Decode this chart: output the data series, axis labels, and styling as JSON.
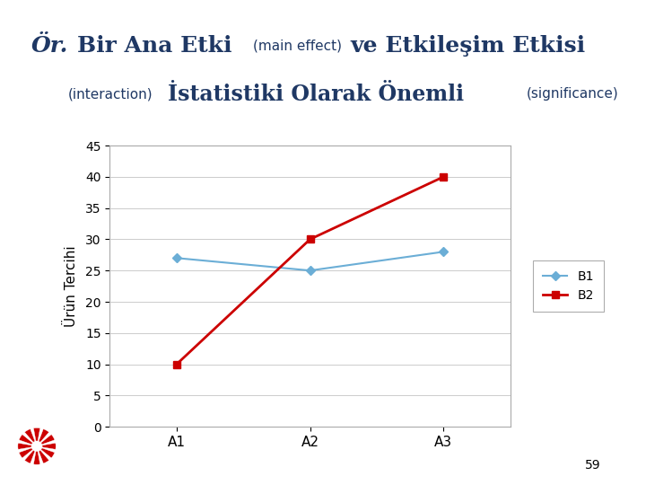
{
  "x_labels": [
    "A1",
    "A2",
    "A3"
  ],
  "x_values": [
    1,
    2,
    3
  ],
  "B1_values": [
    27,
    25,
    28
  ],
  "B2_values": [
    10,
    30,
    40
  ],
  "B1_color": "#6BAED6",
  "B2_color": "#CC0000",
  "ylabel": "Ürün Tercihi",
  "ylim": [
    0,
    45
  ],
  "yticks": [
    0,
    5,
    10,
    15,
    20,
    25,
    30,
    35,
    40,
    45
  ],
  "slide_bg": "#FFFFFF",
  "plot_bg": "#FFFFFF",
  "page_number": "59",
  "title_color": "#1F3864",
  "legend_labels": [
    "B1",
    "B2"
  ],
  "left_strip_colors": [
    "#4472C4",
    "#7B9BD4",
    "#A8B8E0"
  ],
  "right_strip_colors": [
    "#C0504D",
    "#D08080",
    "#E0B0B0"
  ],
  "bottom_strip1": "#7B96C8",
  "bottom_strip2": "#4040AA"
}
